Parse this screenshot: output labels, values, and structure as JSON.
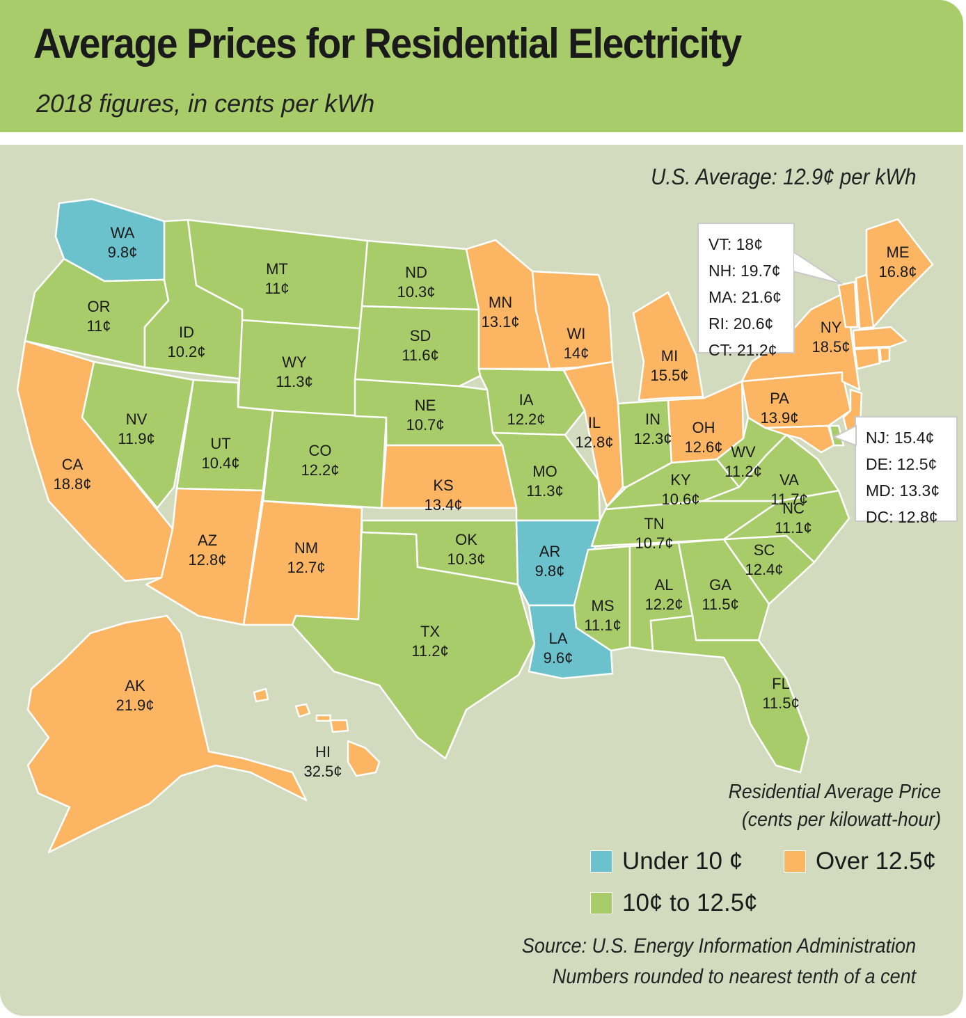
{
  "title": "Average Prices for Residential Electricity",
  "subtitle": "2018 figures, in cents per kWh",
  "us_average": "U.S. Average: 12.9¢ per kWh",
  "colors": {
    "under": "#6bc2cc",
    "mid": "#a9cc6a",
    "over": "#fbb563",
    "panel": "#d3dbbf",
    "header": "#a9cc6a"
  },
  "states": [
    {
      "abbr": "WA",
      "price": "9.8¢",
      "value": 9.8
    },
    {
      "abbr": "OR",
      "price": "11¢",
      "value": 11
    },
    {
      "abbr": "CA",
      "price": "18.8¢",
      "value": 18.8
    },
    {
      "abbr": "ID",
      "price": "10.2¢",
      "value": 10.2
    },
    {
      "abbr": "NV",
      "price": "11.9¢",
      "value": 11.9
    },
    {
      "abbr": "MT",
      "price": "11¢",
      "value": 11
    },
    {
      "abbr": "WY",
      "price": "11.3¢",
      "value": 11.3
    },
    {
      "abbr": "UT",
      "price": "10.4¢",
      "value": 10.4
    },
    {
      "abbr": "AZ",
      "price": "12.8¢",
      "value": 12.8
    },
    {
      "abbr": "CO",
      "price": "12.2¢",
      "value": 12.2
    },
    {
      "abbr": "NM",
      "price": "12.7¢",
      "value": 12.7
    },
    {
      "abbr": "ND",
      "price": "10.3¢",
      "value": 10.3
    },
    {
      "abbr": "SD",
      "price": "11.6¢",
      "value": 11.6
    },
    {
      "abbr": "NE",
      "price": "10.7¢",
      "value": 10.7
    },
    {
      "abbr": "KS",
      "price": "13.4¢",
      "value": 13.4
    },
    {
      "abbr": "OK",
      "price": "10.3¢",
      "value": 10.3
    },
    {
      "abbr": "TX",
      "price": "11.2¢",
      "value": 11.2
    },
    {
      "abbr": "MN",
      "price": "13.1¢",
      "value": 13.1
    },
    {
      "abbr": "IA",
      "price": "12.2¢",
      "value": 12.2
    },
    {
      "abbr": "MO",
      "price": "11.3¢",
      "value": 11.3
    },
    {
      "abbr": "AR",
      "price": "9.8¢",
      "value": 9.8
    },
    {
      "abbr": "LA",
      "price": "9.6¢",
      "value": 9.6
    },
    {
      "abbr": "WI",
      "price": "14¢",
      "value": 14
    },
    {
      "abbr": "IL",
      "price": "12.8¢",
      "value": 12.8
    },
    {
      "abbr": "MI",
      "price": "15.5¢",
      "value": 15.5
    },
    {
      "abbr": "IN",
      "price": "12.3¢",
      "value": 12.3
    },
    {
      "abbr": "OH",
      "price": "12.6¢",
      "value": 12.6
    },
    {
      "abbr": "KY",
      "price": "10.6¢",
      "value": 10.6
    },
    {
      "abbr": "TN",
      "price": "10.7¢",
      "value": 10.7
    },
    {
      "abbr": "MS",
      "price": "11.1¢",
      "value": 11.1
    },
    {
      "abbr": "AL",
      "price": "12.2¢",
      "value": 12.2
    },
    {
      "abbr": "GA",
      "price": "11.5¢",
      "value": 11.5
    },
    {
      "abbr": "FL",
      "price": "11.5¢",
      "value": 11.5
    },
    {
      "abbr": "SC",
      "price": "12.4¢",
      "value": 12.4
    },
    {
      "abbr": "NC",
      "price": "11.1¢",
      "value": 11.1
    },
    {
      "abbr": "VA",
      "price": "11.7¢",
      "value": 11.7
    },
    {
      "abbr": "WV",
      "price": "11.2¢",
      "value": 11.2
    },
    {
      "abbr": "PA",
      "price": "13.9¢",
      "value": 13.9
    },
    {
      "abbr": "NY",
      "price": "18.5¢",
      "value": 18.5
    },
    {
      "abbr": "ME",
      "price": "16.8¢",
      "value": 16.8
    },
    {
      "abbr": "AK",
      "price": "21.9¢",
      "value": 21.9
    },
    {
      "abbr": "HI",
      "price": "32.5¢",
      "value": 32.5
    }
  ],
  "callout_northeast": [
    "VT: 18¢",
    "NH: 19.7¢",
    "MA: 21.6¢",
    "RI: 20.6¢",
    "CT: 21.2¢"
  ],
  "callout_midatlantic": [
    "NJ: 15.4¢",
    "DE: 12.5¢",
    "MD: 13.3¢",
    "DC: 12.8¢"
  ],
  "legend": {
    "title_line1": "Residential Average Price",
    "title_line2": "(cents per kilowatt-hour)",
    "under": "Under 10 ¢",
    "over": "Over 12.5¢",
    "mid": "10¢ to 12.5¢"
  },
  "source_line1": "Source: U.S. Energy Information Administration",
  "source_line2": "Numbers rounded to nearest tenth of a cent"
}
